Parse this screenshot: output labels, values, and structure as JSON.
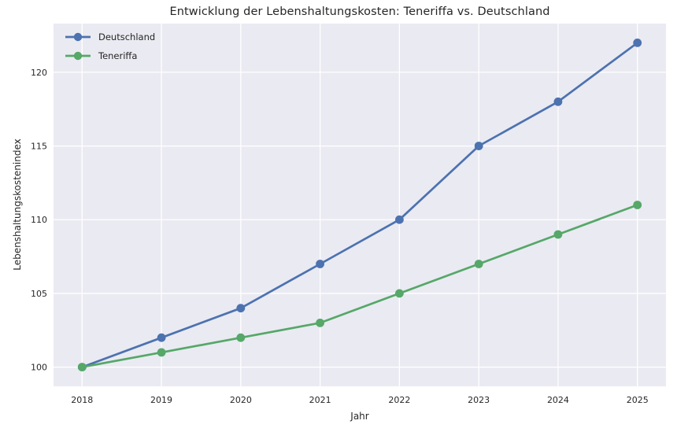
{
  "chart_data": {
    "type": "line",
    "title": "Entwicklung der Lebenshaltungskosten: Teneriffa vs. Deutschland",
    "xlabel": "Jahr",
    "ylabel": "Lebenshaltungskostenindex",
    "categories": [
      2018,
      2019,
      2020,
      2021,
      2022,
      2023,
      2024,
      2025
    ],
    "series": [
      {
        "name": "Deutschland",
        "color": "#4C72B0",
        "values": [
          100,
          102,
          104,
          107,
          110,
          115,
          118,
          122
        ]
      },
      {
        "name": "Teneriffa",
        "color": "#55A868",
        "values": [
          100,
          101,
          102,
          103,
          105,
          107,
          109,
          111
        ]
      }
    ],
    "yticks": [
      100,
      105,
      110,
      115,
      120
    ],
    "ylim": [
      98.7,
      123.3
    ],
    "xlim": [
      2017.64,
      2025.36
    ],
    "grid": true,
    "legend_position": "upper left",
    "plot_bg_color": "#EAEAF2",
    "grid_color": "#FFFFFF",
    "text_color": "#262626",
    "figure_bg_color": "#FFFFFF"
  }
}
